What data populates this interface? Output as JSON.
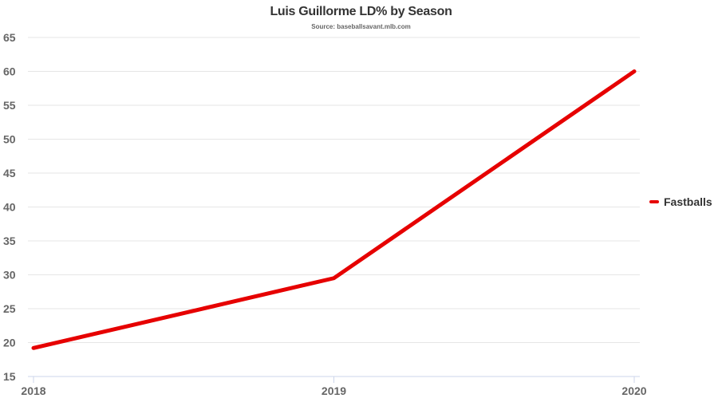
{
  "chart_data": {
    "type": "line",
    "title": "Luis Guillorme LD% by Season",
    "subtitle": "Source: baseballsavant.mlb.com",
    "xlabel": "",
    "ylabel": "",
    "categories": [
      "2018",
      "2019",
      "2020"
    ],
    "ylim": [
      15,
      65
    ],
    "yticks": [
      15,
      20,
      25,
      30,
      35,
      40,
      45,
      50,
      55,
      60,
      65
    ],
    "grid": true,
    "legend_position": "right",
    "series": [
      {
        "name": "Fastballs",
        "color": "#e60000",
        "values": [
          19.2,
          29.5,
          60.0
        ]
      }
    ]
  }
}
